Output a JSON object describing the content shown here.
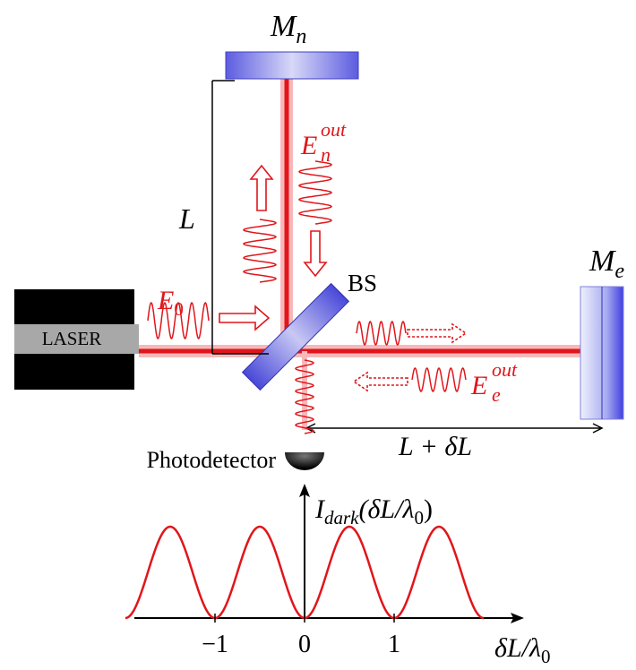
{
  "mirror_n": {
    "symbol": "M",
    "subscript": "n"
  },
  "mirror_e": {
    "symbol": "M",
    "subscript": "e"
  },
  "arm_length": "L",
  "input_field": {
    "symbol": "E",
    "subscript": "0"
  },
  "beam_splitter": "BS",
  "output_n": {
    "symbol": "E",
    "subscript": "n",
    "superscript": "out"
  },
  "output_e": {
    "symbol": "E",
    "subscript": "e",
    "superscript": "out"
  },
  "laser": "LASER",
  "detector": "Photodetector",
  "arm_difference": "L + δL",
  "plot": {
    "y_label": {
      "symbol": "I",
      "subscript": "dark",
      "argument": "(δL/λ",
      "argument_subscript": "0",
      "close": ")"
    },
    "x_label": {
      "symbol": "δL/λ",
      "subscript": "0"
    },
    "ticks": [
      {
        "value": -1,
        "label": "−1"
      },
      {
        "value": 0,
        "label": "0"
      },
      {
        "value": 1,
        "label": "1"
      }
    ]
  }
}
